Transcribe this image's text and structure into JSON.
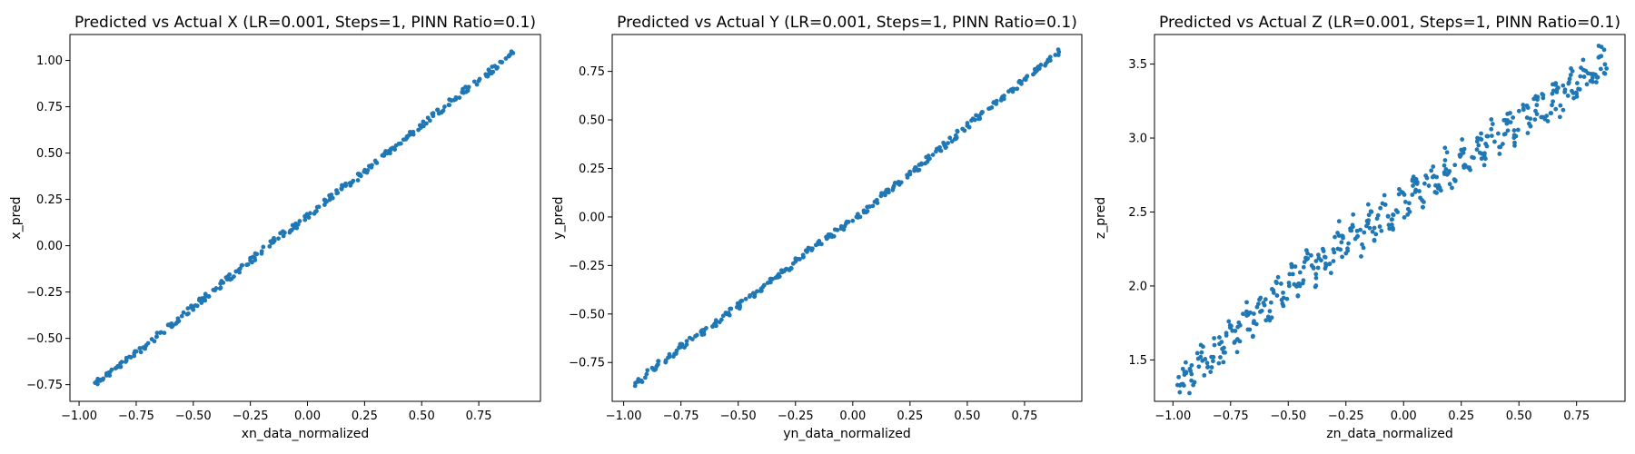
{
  "colors": {
    "marker": "#1f77b4",
    "axes": "#000000",
    "background": "#ffffff"
  },
  "chart_data": [
    {
      "type": "scatter",
      "title": "Predicted vs Actual X (LR=0.001, Steps=1, PINN Ratio=0.1)",
      "xlabel": "xn_data_normalized",
      "ylabel": "x_pred",
      "xlim": [
        -1.04,
        1.02
      ],
      "ylim": [
        -0.84,
        1.14
      ],
      "xticks": [
        -1.0,
        -0.75,
        -0.5,
        -0.25,
        0.0,
        0.25,
        0.5,
        0.75
      ],
      "xtick_labels": [
        "−1.00",
        "−0.75",
        "−0.50",
        "−0.25",
        "0.00",
        "0.25",
        "0.50",
        "0.75"
      ],
      "yticks": [
        -0.75,
        -0.5,
        -0.25,
        0.0,
        0.25,
        0.5,
        0.75,
        1.0
      ],
      "ytick_labels": [
        "−0.75",
        "−0.50",
        "−0.25",
        "0.00",
        "0.25",
        "0.50",
        "0.75",
        "1.00"
      ],
      "grid": false,
      "x": [
        -0.93,
        -0.88,
        -0.83,
        -0.78,
        -0.72,
        -0.66,
        -0.6,
        -0.55,
        -0.5,
        -0.45,
        -0.4,
        -0.35,
        -0.3,
        -0.25,
        -0.2,
        -0.15,
        -0.1,
        -0.05,
        0.0,
        0.05,
        0.1,
        0.15,
        0.2,
        0.25,
        0.3,
        0.35,
        0.4,
        0.45,
        0.5,
        0.55,
        0.6,
        0.65,
        0.7,
        0.75,
        0.8,
        0.85,
        0.9
      ],
      "y": [
        -0.74,
        -0.7,
        -0.65,
        -0.6,
        -0.55,
        -0.49,
        -0.43,
        -0.38,
        -0.33,
        -0.28,
        -0.23,
        -0.18,
        -0.13,
        -0.08,
        -0.03,
        0.02,
        0.07,
        0.11,
        0.16,
        0.21,
        0.26,
        0.31,
        0.35,
        0.4,
        0.45,
        0.5,
        0.55,
        0.6,
        0.65,
        0.7,
        0.75,
        0.8,
        0.85,
        0.89,
        0.94,
        0.99,
        1.04
      ]
    },
    {
      "type": "scatter",
      "title": "Predicted vs Actual Y (LR=0.001, Steps=1, PINN Ratio=0.1)",
      "xlabel": "yn_data_normalized",
      "ylabel": "y_pred",
      "xlim": [
        -1.05,
        1.0
      ],
      "ylim": [
        -0.95,
        0.94
      ],
      "xticks": [
        -1.0,
        -0.75,
        -0.5,
        -0.25,
        0.0,
        0.25,
        0.5,
        0.75
      ],
      "xtick_labels": [
        "−1.00",
        "−0.75",
        "−0.50",
        "−0.25",
        "0.00",
        "0.25",
        "0.50",
        "0.75"
      ],
      "yticks": [
        -0.75,
        -0.5,
        -0.25,
        0.0,
        0.25,
        0.5,
        0.75
      ],
      "ytick_labels": [
        "−0.75",
        "−0.50",
        "−0.25",
        "0.00",
        "0.25",
        "0.50",
        "0.75"
      ],
      "grid": false,
      "x": [
        -0.95,
        -0.9,
        -0.85,
        -0.8,
        -0.75,
        -0.7,
        -0.65,
        -0.6,
        -0.55,
        -0.5,
        -0.45,
        -0.4,
        -0.35,
        -0.3,
        -0.25,
        -0.2,
        -0.15,
        -0.1,
        -0.05,
        0.0,
        0.05,
        0.1,
        0.15,
        0.2,
        0.25,
        0.3,
        0.35,
        0.4,
        0.45,
        0.5,
        0.55,
        0.6,
        0.65,
        0.7,
        0.75,
        0.8,
        0.85,
        0.9
      ],
      "y": [
        -0.87,
        -0.81,
        -0.76,
        -0.72,
        -0.67,
        -0.63,
        -0.59,
        -0.55,
        -0.5,
        -0.46,
        -0.41,
        -0.37,
        -0.32,
        -0.28,
        -0.23,
        -0.18,
        -0.14,
        -0.1,
        -0.06,
        -0.02,
        0.03,
        0.08,
        0.13,
        0.18,
        0.22,
        0.27,
        0.32,
        0.37,
        0.42,
        0.47,
        0.52,
        0.56,
        0.61,
        0.66,
        0.71,
        0.75,
        0.8,
        0.85
      ]
    },
    {
      "type": "scatter",
      "title": "Predicted vs Actual Z (LR=0.001, Steps=1, PINN Ratio=0.1)",
      "xlabel": "zn_data_normalized",
      "ylabel": "z_pred",
      "xlim": [
        -1.08,
        0.96
      ],
      "ylim": [
        1.22,
        3.7
      ],
      "xticks": [
        -1.0,
        -0.75,
        -0.5,
        -0.25,
        0.0,
        0.25,
        0.5,
        0.75
      ],
      "xtick_labels": [
        "−1.00",
        "−0.75",
        "−0.50",
        "−0.25",
        "0.00",
        "0.25",
        "0.50",
        "0.75"
      ],
      "yticks": [
        1.5,
        2.0,
        2.5,
        3.0,
        3.5
      ],
      "ytick_labels": [
        "1.5",
        "2.0",
        "2.5",
        "3.0",
        "3.5"
      ],
      "grid": false,
      "x": [
        -0.98,
        -0.95,
        -0.92,
        -0.88,
        -0.85,
        -0.82,
        -0.78,
        -0.75,
        -0.72,
        -0.68,
        -0.65,
        -0.62,
        -0.58,
        -0.55,
        -0.52,
        -0.48,
        -0.45,
        -0.42,
        -0.38,
        -0.35,
        -0.32,
        -0.28,
        -0.25,
        -0.22,
        -0.18,
        -0.15,
        -0.12,
        -0.08,
        -0.05,
        -0.02,
        0.02,
        0.05,
        0.08,
        0.12,
        0.15,
        0.18,
        0.22,
        0.25,
        0.28,
        0.32,
        0.35,
        0.38,
        0.42,
        0.45,
        0.48,
        0.52,
        0.55,
        0.58,
        0.62,
        0.65,
        0.68,
        0.72,
        0.75,
        0.78,
        0.82,
        0.85,
        0.88
      ],
      "y": [
        1.33,
        1.4,
        1.36,
        1.52,
        1.45,
        1.6,
        1.55,
        1.72,
        1.64,
        1.8,
        1.75,
        1.92,
        1.83,
        2.02,
        1.92,
        2.08,
        2.0,
        2.18,
        2.08,
        2.25,
        2.15,
        2.34,
        2.22,
        2.4,
        2.28,
        2.48,
        2.35,
        2.55,
        2.45,
        2.62,
        2.52,
        2.7,
        2.58,
        2.78,
        2.66,
        2.85,
        2.72,
        2.92,
        2.8,
        3.0,
        2.88,
        3.06,
        2.94,
        3.12,
        3.02,
        3.2,
        3.08,
        3.26,
        3.15,
        3.32,
        3.22,
        3.4,
        3.3,
        3.46,
        3.38,
        3.55,
        3.47
      ]
    }
  ]
}
